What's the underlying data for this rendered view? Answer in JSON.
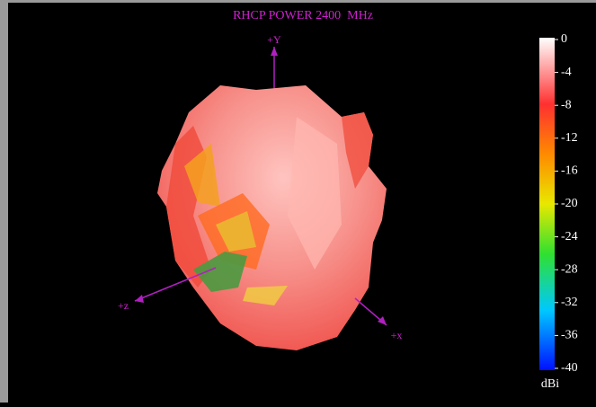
{
  "title": "RHCP POWER 2400  MHz",
  "axes": {
    "y": "+Y",
    "z": "+z",
    "x": "+x"
  },
  "colorbar": {
    "ticks": [
      0,
      -4,
      -8,
      -12,
      -16,
      -20,
      -24,
      -28,
      -32,
      -36,
      -40
    ],
    "unit": "dBi"
  }
}
